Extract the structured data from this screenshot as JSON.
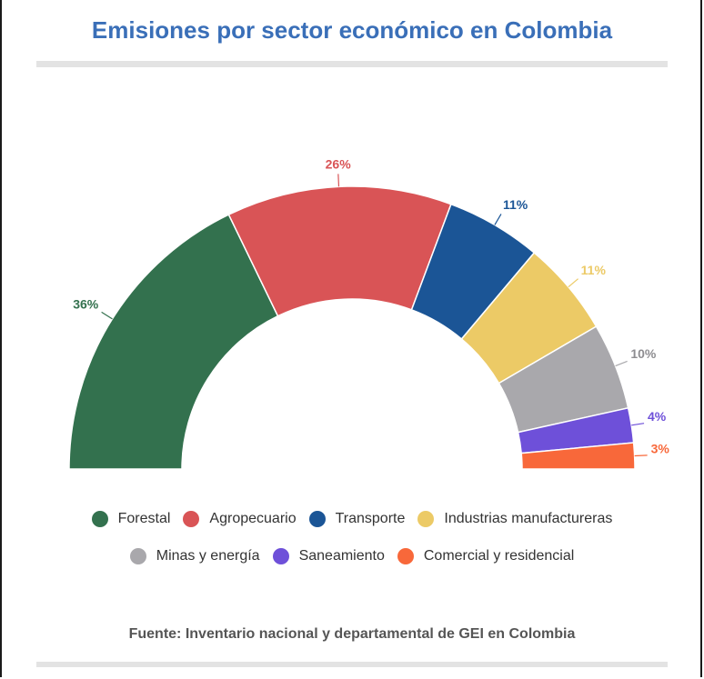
{
  "chart_data": {
    "type": "pie",
    "style": "semi-donut",
    "title": "Emisiones por sector económico en Colombia",
    "source": "Fuente: Inventario nacional y departamental de GEI en Colombia",
    "legend_position": "bottom",
    "slices": [
      {
        "label": "Forestal",
        "value": 36,
        "value_label": "36%",
        "color": "#33714e"
      },
      {
        "label": "Agropecuario",
        "value": 26,
        "value_label": "26%",
        "color": "#d95456"
      },
      {
        "label": "Transporte",
        "value": 11,
        "value_label": "11%",
        "color": "#1b5596"
      },
      {
        "label": "Industrias manufactureras",
        "value": 11,
        "value_label": "11%",
        "color": "#ecca66"
      },
      {
        "label": "Minas y energía",
        "value": 10,
        "value_label": "10%",
        "color": "#a9a8ac"
      },
      {
        "label": "Saneamiento",
        "value": 4,
        "value_label": "4%",
        "color": "#6e50d9"
      },
      {
        "label": "Comercial y residencial",
        "value": 3,
        "value_label": "3%",
        "color": "#f8683a"
      }
    ]
  }
}
